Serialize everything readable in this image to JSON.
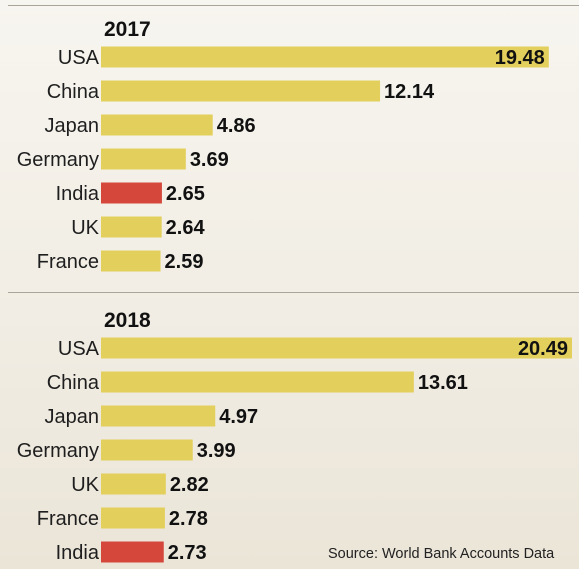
{
  "chart_data": [
    {
      "type": "bar",
      "orientation": "horizontal",
      "title": "2017",
      "categories": [
        "USA",
        "China",
        "Japan",
        "Germany",
        "India",
        "UK",
        "France"
      ],
      "values": [
        19.48,
        12.14,
        4.86,
        3.69,
        2.65,
        2.64,
        2.59
      ],
      "highlight": "India",
      "xlim": [
        0,
        20.49
      ],
      "grid": false,
      "legend": "none"
    },
    {
      "type": "bar",
      "orientation": "horizontal",
      "title": "2018",
      "categories": [
        "USA",
        "China",
        "Japan",
        "Germany",
        "UK",
        "France",
        "India"
      ],
      "values": [
        20.49,
        13.61,
        4.97,
        3.99,
        2.82,
        2.78,
        2.73
      ],
      "highlight": "India",
      "xlim": [
        0,
        20.49
      ],
      "grid": false,
      "legend": "none"
    }
  ],
  "source": "Source: World Bank Accounts Data",
  "colors": {
    "bar": "#e3cf5c",
    "highlight": "#d4473a",
    "text": "#111111"
  }
}
